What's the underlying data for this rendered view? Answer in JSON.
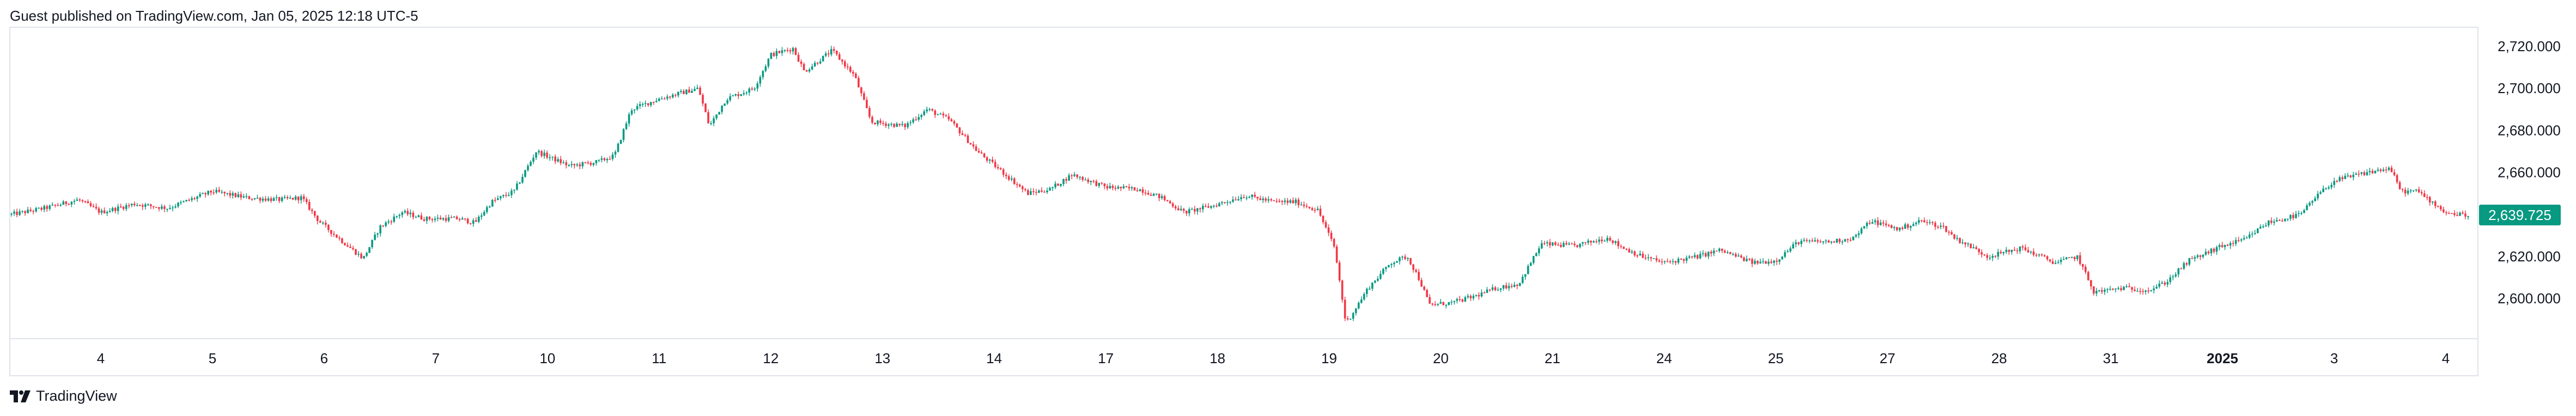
{
  "header": {
    "published": "Guest published on TradingView.com, Jan 05, 2025 12:18 UTC-5"
  },
  "footer": {
    "brand": "TradingView"
  },
  "colors": {
    "up": "#089981",
    "down": "#f23645",
    "axis": "#e0e3eb",
    "price_tag": "#089981"
  },
  "chart_data": {
    "type": "candlestick",
    "title": "",
    "last_price": 2639.725,
    "last_price_label": "2,639.725",
    "y_ticks": [
      2600,
      2620,
      2640,
      2660,
      2680,
      2700,
      2720
    ],
    "y_tick_labels": [
      "2,600.000",
      "2,620.000",
      "2,640.000",
      "2,660.000",
      "2,680.000",
      "2,700.000",
      "2,720.000"
    ],
    "ylim": [
      2584,
      2727
    ],
    "x_tick_labels": [
      {
        "label": "4",
        "x": 1,
        "bold": false
      },
      {
        "label": "5",
        "x": 2,
        "bold": false
      },
      {
        "label": "6",
        "x": 3,
        "bold": false
      },
      {
        "label": "7",
        "x": 4,
        "bold": false
      },
      {
        "label": "10",
        "x": 5,
        "bold": false
      },
      {
        "label": "11",
        "x": 6,
        "bold": false
      },
      {
        "label": "12",
        "x": 7,
        "bold": false
      },
      {
        "label": "13",
        "x": 8,
        "bold": false
      },
      {
        "label": "14",
        "x": 9,
        "bold": false
      },
      {
        "label": "17",
        "x": 10,
        "bold": false
      },
      {
        "label": "18",
        "x": 11,
        "bold": false
      },
      {
        "label": "19",
        "x": 12,
        "bold": false
      },
      {
        "label": "20",
        "x": 13,
        "bold": false
      },
      {
        "label": "21",
        "x": 14,
        "bold": false
      },
      {
        "label": "24",
        "x": 15,
        "bold": false
      },
      {
        "label": "25",
        "x": 16,
        "bold": false
      },
      {
        "label": "27",
        "x": 17,
        "bold": false
      },
      {
        "label": "28",
        "x": 18,
        "bold": false
      },
      {
        "label": "31",
        "x": 19,
        "bold": false
      },
      {
        "label": "2025",
        "x": 20,
        "bold": true
      },
      {
        "label": "3",
        "x": 21,
        "bold": false
      },
      {
        "label": "4",
        "x": 22,
        "bold": false
      }
    ],
    "xlim": [
      0.2,
      22.2
    ],
    "path": [
      [
        0.2,
        2640
      ],
      [
        0.5,
        2643
      ],
      [
        0.8,
        2647
      ],
      [
        1.0,
        2641
      ],
      [
        1.3,
        2645
      ],
      [
        1.6,
        2643
      ],
      [
        2.0,
        2651
      ],
      [
        2.3,
        2648
      ],
      [
        2.6,
        2647
      ],
      [
        2.8,
        2648
      ],
      [
        2.95,
        2637
      ],
      [
        3.1,
        2630
      ],
      [
        3.35,
        2619
      ],
      [
        3.5,
        2634
      ],
      [
        3.7,
        2641
      ],
      [
        3.9,
        2638
      ],
      [
        4.2,
        2638
      ],
      [
        4.35,
        2636
      ],
      [
        4.5,
        2646
      ],
      [
        4.7,
        2651
      ],
      [
        4.9,
        2670
      ],
      [
        5.2,
        2663
      ],
      [
        5.45,
        2665
      ],
      [
        5.6,
        2668
      ],
      [
        5.75,
        2690
      ],
      [
        6.0,
        2695
      ],
      [
        6.35,
        2700
      ],
      [
        6.45,
        2682
      ],
      [
        6.6,
        2695
      ],
      [
        6.85,
        2700
      ],
      [
        7.0,
        2716
      ],
      [
        7.2,
        2719
      ],
      [
        7.3,
        2708
      ],
      [
        7.55,
        2718
      ],
      [
        7.75,
        2706
      ],
      [
        7.9,
        2684
      ],
      [
        8.2,
        2682
      ],
      [
        8.4,
        2690
      ],
      [
        8.6,
        2685
      ],
      [
        8.85,
        2670
      ],
      [
        9.1,
        2659
      ],
      [
        9.3,
        2650
      ],
      [
        9.5,
        2652
      ],
      [
        9.7,
        2659
      ],
      [
        10.0,
        2653
      ],
      [
        10.3,
        2652
      ],
      [
        10.5,
        2648
      ],
      [
        10.7,
        2641
      ],
      [
        10.95,
        2644
      ],
      [
        11.25,
        2649
      ],
      [
        11.5,
        2646
      ],
      [
        11.7,
        2646
      ],
      [
        11.9,
        2642
      ],
      [
        12.05,
        2624
      ],
      [
        12.15,
        2588
      ],
      [
        12.35,
        2605
      ],
      [
        12.55,
        2617
      ],
      [
        12.7,
        2620
      ],
      [
        12.8,
        2610
      ],
      [
        12.9,
        2597
      ],
      [
        13.1,
        2598
      ],
      [
        13.3,
        2601
      ],
      [
        13.5,
        2605
      ],
      [
        13.7,
        2607
      ],
      [
        13.9,
        2626
      ],
      [
        14.2,
        2625
      ],
      [
        14.5,
        2629
      ],
      [
        14.6,
        2625
      ],
      [
        14.8,
        2620
      ],
      [
        15.0,
        2617
      ],
      [
        15.3,
        2620
      ],
      [
        15.5,
        2623
      ],
      [
        15.8,
        2617
      ],
      [
        16.0,
        2618
      ],
      [
        16.2,
        2627
      ],
      [
        16.5,
        2627
      ],
      [
        16.7,
        2629
      ],
      [
        16.85,
        2637
      ],
      [
        17.1,
        2633
      ],
      [
        17.3,
        2637
      ],
      [
        17.5,
        2634
      ],
      [
        17.6,
        2629
      ],
      [
        17.9,
        2620
      ],
      [
        18.2,
        2624
      ],
      [
        18.5,
        2617
      ],
      [
        18.7,
        2620
      ],
      [
        18.85,
        2603
      ],
      [
        19.1,
        2605
      ],
      [
        19.35,
        2604
      ],
      [
        19.5,
        2608
      ],
      [
        19.7,
        2618
      ],
      [
        20.0,
        2625
      ],
      [
        20.2,
        2628
      ],
      [
        20.4,
        2636
      ],
      [
        20.7,
        2640
      ],
      [
        20.85,
        2649
      ],
      [
        21.0,
        2656
      ],
      [
        21.3,
        2660
      ],
      [
        21.5,
        2662
      ],
      [
        21.6,
        2651
      ],
      [
        21.75,
        2651
      ],
      [
        21.85,
        2647
      ],
      [
        22.0,
        2641
      ],
      [
        22.1,
        2640
      ],
      [
        22.2,
        2639.7
      ]
    ]
  }
}
